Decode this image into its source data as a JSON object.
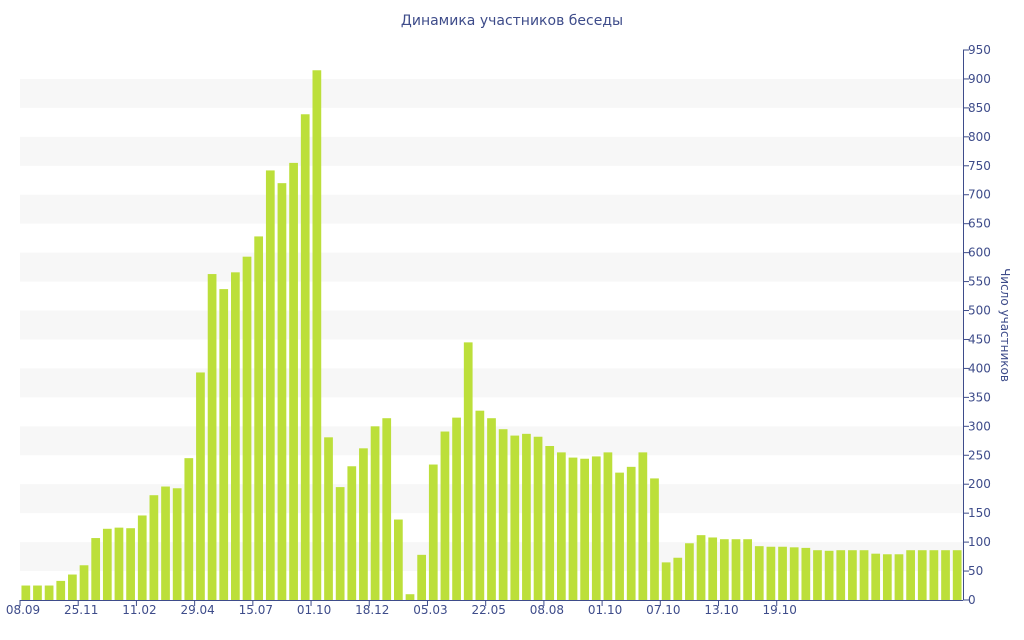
{
  "chart_data": {
    "type": "bar",
    "title": "Динамика участников беседы",
    "xlabel": "",
    "ylabel": "Число участников",
    "ylim": [
      0,
      950
    ],
    "y_ticks": [
      0,
      50,
      100,
      150,
      200,
      250,
      300,
      350,
      400,
      450,
      500,
      550,
      600,
      650,
      700,
      750,
      800,
      850,
      900,
      950
    ],
    "y_axis_side": "right",
    "grid": "alternating horizontal bands",
    "x_tick_labels": [
      "08.09",
      "25.11",
      "11.02",
      "29.04",
      "15.07",
      "01.10",
      "18.12",
      "05.03",
      "22.05",
      "08.08",
      "01.10",
      "07.10",
      "13.10",
      "19.10"
    ],
    "x_tick_every": 5,
    "series": [
      {
        "values": [
          25,
          25,
          25,
          33,
          44,
          60,
          107,
          123,
          125,
          124,
          146,
          181,
          196,
          193,
          245,
          393,
          563,
          537,
          566,
          593,
          628,
          742,
          720,
          755,
          839,
          915,
          281,
          195,
          231,
          262,
          300,
          314,
          139,
          10,
          78,
          234,
          291,
          315,
          445,
          327,
          314,
          295,
          284,
          287,
          282,
          266,
          255,
          246,
          244,
          248,
          255,
          220,
          230,
          255,
          210,
          65,
          73,
          98,
          112,
          108,
          105,
          105,
          105,
          93,
          92,
          92,
          91,
          90,
          86,
          85,
          86,
          86,
          86,
          80,
          79,
          79,
          86,
          86,
          86,
          86,
          86
        ]
      }
    ],
    "colors": {
      "bar": "#bcdf3a",
      "band": "#f7f7f7",
      "axis": "#3e4c8a",
      "text": "#3e4c8a"
    }
  }
}
